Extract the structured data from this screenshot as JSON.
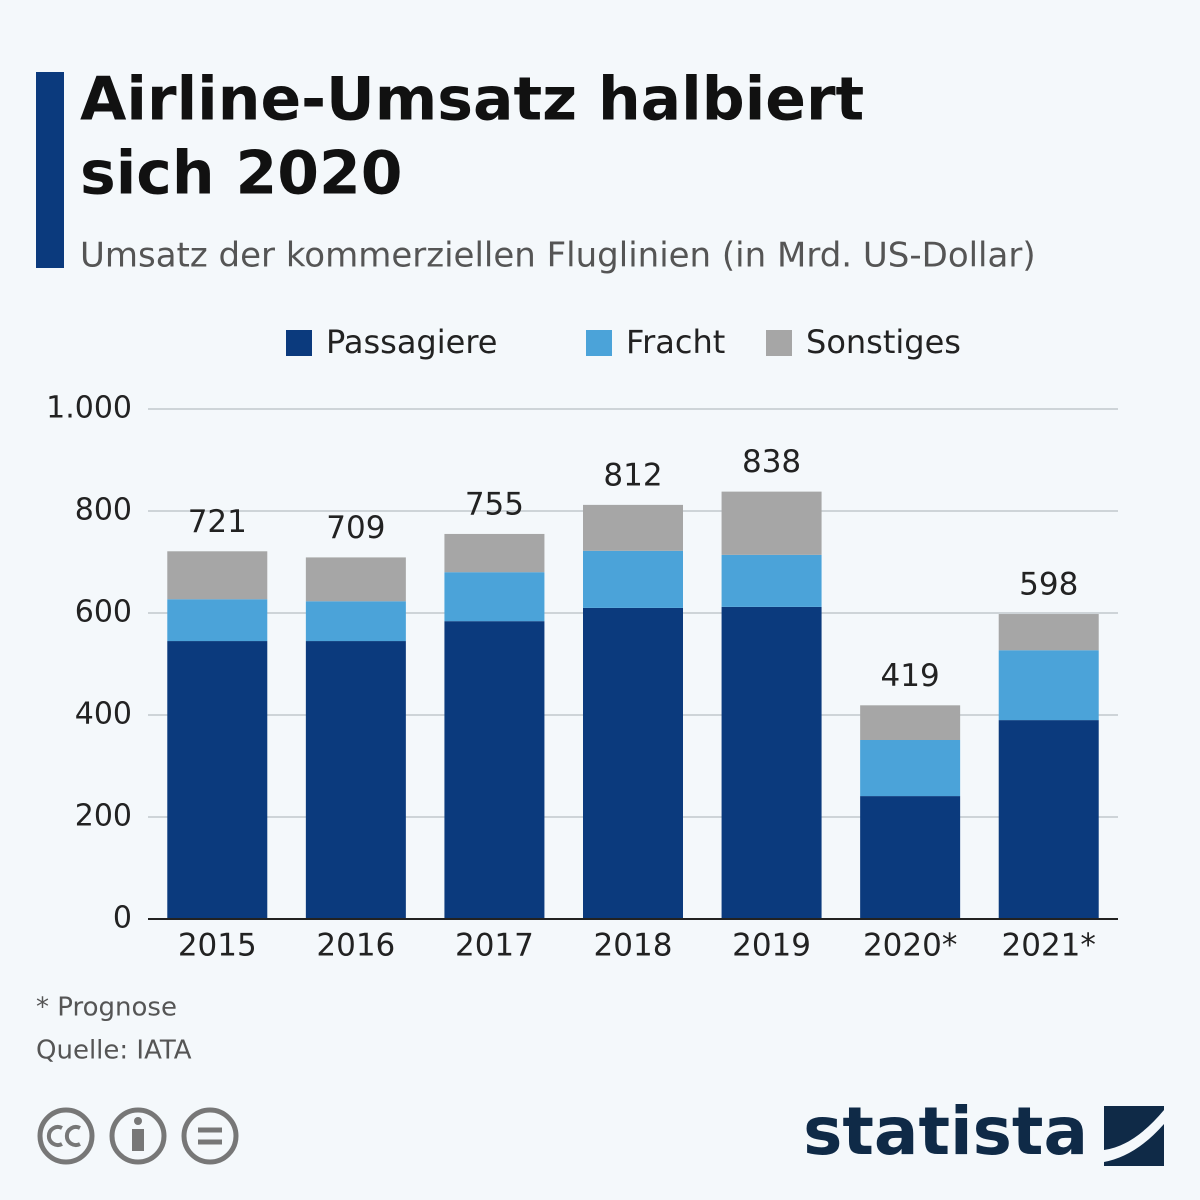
{
  "chart_data": {
    "type": "stacked_bar",
    "title_lines": [
      "Airline-Umsatz halbiert",
      "sich 2020"
    ],
    "subtitle": "Umsatz der kommerziellen Fluglinien (in Mrd. US-Dollar)",
    "categories": [
      "2015",
      "2016",
      "2017",
      "2018",
      "2019",
      "2020*",
      "2021*"
    ],
    "series": [
      {
        "name": "Passagiere",
        "color": "#0b3a7d",
        "values": [
          545,
          545,
          584,
          610,
          612,
          241,
          390
        ]
      },
      {
        "name": "Fracht",
        "color": "#4ba3d9",
        "values": [
          82,
          78,
          96,
          112,
          102,
          110,
          137
        ]
      },
      {
        "name": "Sonstiges",
        "color": "#a6a6a6",
        "values": [
          94,
          86,
          75,
          90,
          124,
          68,
          71
        ]
      }
    ],
    "totals": [
      721,
      709,
      755,
      812,
      838,
      419,
      598
    ],
    "ylim": [
      0,
      1000
    ],
    "yticks": [
      0,
      200,
      400,
      600,
      800,
      {
        "value": 1000,
        "label": "1.000"
      }
    ],
    "grid": true,
    "footnote": "* Prognose",
    "source": "Quelle: IATA",
    "logo": "statista"
  }
}
